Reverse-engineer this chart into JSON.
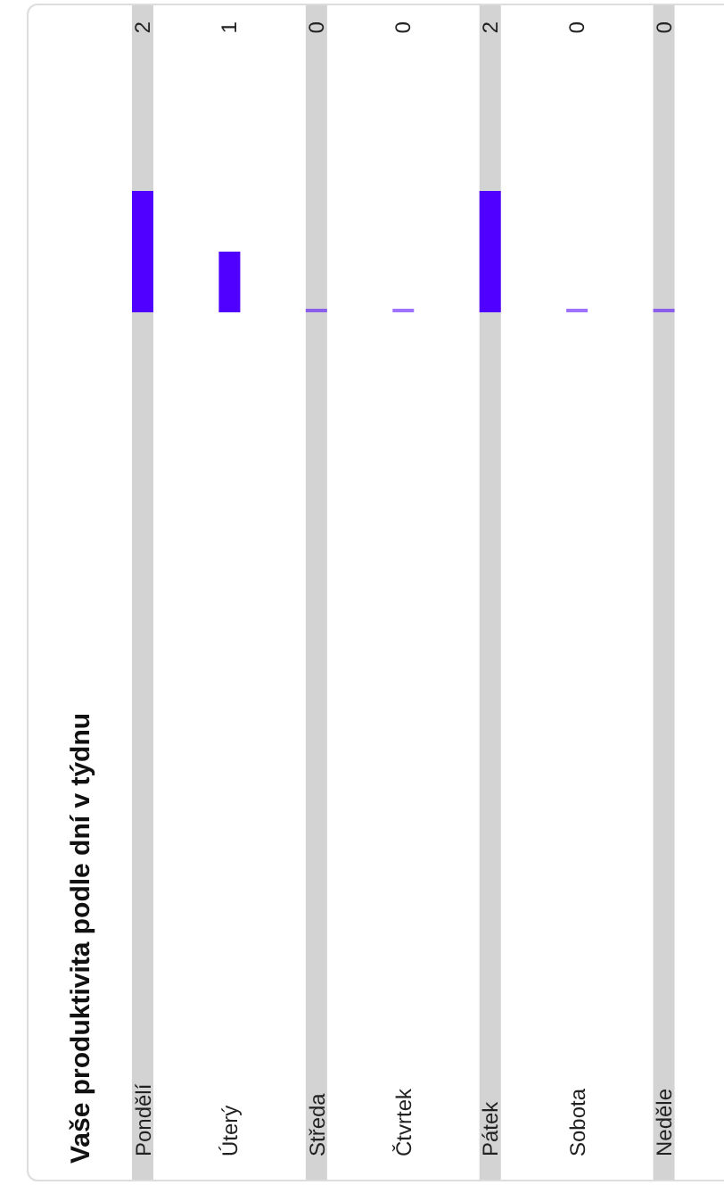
{
  "chart_data": {
    "type": "bar",
    "title": "Vaše produktivita podle dní v týdnu",
    "categories": [
      "Pondělí",
      "Úterý",
      "Středa",
      "Čtvrtek",
      "Pátek",
      "Sobota",
      "Neděle"
    ],
    "values": [
      2,
      1,
      0,
      0,
      2,
      0,
      0
    ],
    "color": "#5000ff",
    "data_labels": true
  }
}
